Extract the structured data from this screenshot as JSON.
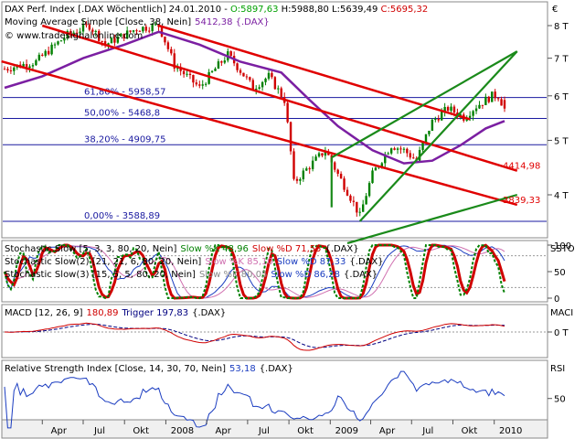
{
  "header": {
    "main_prefix": "DAX Perf. Index [.DAX  Wöchentlich] 24.01.2010 - ",
    "ohlc": [
      {
        "label": "O:5897,63",
        "color": "#00a000"
      },
      {
        "label": " H:5988,80",
        "color": "#000000"
      },
      {
        "label": " L:5639,49",
        "color": "#000000"
      },
      {
        "label": " C:5695,32",
        "color": "#d00000"
      }
    ],
    "ma_label": "Moving Average Simple [Close, 38, Nein]",
    "ma_value": "5412,38 {.DAX}",
    "website": "© www.tradesignalonline.com",
    "euro_symbol": "€"
  },
  "colors": {
    "up": "#008000",
    "down": "#d00000",
    "ma": "#7b1fa2",
    "channel": "#e00000",
    "support": "#1a8a1a",
    "fib": "#1a1aa0",
    "stoch_k": "#008000",
    "stoch_d": "#d00000",
    "macd": "#d00000",
    "trigger": "#000080",
    "rsi": "#1a3cc0"
  },
  "fibonacci": [
    {
      "label": "61,80% - 5958,57",
      "value": 5958.57
    },
    {
      "label": "50,00% - 5468,8",
      "value": 5468.8
    },
    {
      "label": "38,20% - 4909,75",
      "value": 4909.75
    },
    {
      "label": "0,00% - 3588,89",
      "value": 3588.89
    }
  ],
  "annotations": [
    {
      "label": "4414,98",
      "value": 4414.98
    },
    {
      "label": "3839,33",
      "value": 3839.33
    }
  ],
  "axes": {
    "price_ticks": [
      {
        "label": "8 T",
        "value": 8000
      },
      {
        "label": "7 T",
        "value": 7000
      },
      {
        "label": "6 T",
        "value": 6000
      },
      {
        "label": "5 T",
        "value": 5000
      },
      {
        "label": "4 T",
        "value": 4000
      }
    ],
    "x_labels": [
      "Apr",
      "Jul",
      "Okt",
      "2008",
      "Apr",
      "Jul",
      "Okt",
      "2009",
      "Apr",
      "Jul",
      "Okt",
      "2010"
    ],
    "stoch_title": "SSTO",
    "stoch_ticks": [
      {
        "label": "100",
        "value": 100
      },
      {
        "label": "50",
        "value": 50
      },
      {
        "label": "0",
        "value": 0
      }
    ],
    "macd_title": "MACI",
    "macd_ticks": [
      {
        "label": "0 T",
        "value": 0
      }
    ],
    "rsi_title": "RSI",
    "rsi_ticks": [
      {
        "label": "50",
        "value": 50
      }
    ]
  },
  "stochastic": [
    {
      "prefix": "Stochastic Slow [5, 3, 3, 80, 20, Nein]",
      "k": "Slow %K 48,96",
      "d": "Slow %D 71,55",
      "suffix": "{.DAX}"
    },
    {
      "prefix": "Stochastic Slow(2) [21, 21, 6, 80, 20, Nein]",
      "k": "Slow %K 85,10",
      "d": "Slow %D 87,33",
      "suffix": "{.DAX}"
    },
    {
      "prefix": "Stochastic Slow(3) [15, 5, 5, 80, 20, Nein]",
      "k": "Slow %K 80,05",
      "d": "Slow %D 86,28",
      "suffix": "{.DAX}"
    }
  ],
  "macd": {
    "prefix": "MACD [12, 26, 9]",
    "value": "180,89",
    "trigger": "Trigger 197,83",
    "suffix": "{.DAX}"
  },
  "rsi": {
    "prefix": "Relative Strength Index [Close, 14, 30, 70, Nein]",
    "value": "53,18",
    "suffix": "{.DAX}"
  },
  "chart_data": {
    "type": "candlestick",
    "title": "DAX Perf. Index [.DAX  Wöchentlich] 24.01.2010",
    "x_start": "2007-01-07",
    "x_end": "2010-01-24",
    "x_ticks": [
      {
        "label": "Apr",
        "date": "2007-04-01"
      },
      {
        "label": "Jul",
        "date": "2007-07-01"
      },
      {
        "label": "Okt",
        "date": "2007-10-01"
      },
      {
        "label": "2008",
        "date": "2008-01-01"
      },
      {
        "label": "Apr",
        "date": "2008-04-01"
      },
      {
        "label": "Jul",
        "date": "2008-07-01"
      },
      {
        "label": "Okt",
        "date": "2008-10-01"
      },
      {
        "label": "2009",
        "date": "2009-01-01"
      },
      {
        "label": "Apr",
        "date": "2009-04-01"
      },
      {
        "label": "Jul",
        "date": "2009-07-01"
      },
      {
        "label": "Okt",
        "date": "2009-10-01"
      },
      {
        "label": "2010",
        "date": "2010-01-01"
      }
    ],
    "price_scale": "log",
    "price_range": [
      3350,
      8300
    ],
    "price_key": [
      {
        "date": "2007-01-07",
        "close": 6700
      },
      {
        "date": "2007-03-18",
        "close": 6900
      },
      {
        "date": "2007-05-27",
        "close": 7700
      },
      {
        "date": "2007-07-15",
        "close": 8000
      },
      {
        "date": "2007-08-19",
        "close": 7400
      },
      {
        "date": "2007-10-28",
        "close": 7900
      },
      {
        "date": "2007-12-16",
        "close": 8000
      },
      {
        "date": "2008-01-20",
        "close": 6800
      },
      {
        "date": "2008-03-16",
        "close": 6200
      },
      {
        "date": "2008-05-18",
        "close": 7100
      },
      {
        "date": "2008-07-13",
        "close": 6200
      },
      {
        "date": "2008-08-17",
        "close": 6500
      },
      {
        "date": "2008-09-21",
        "close": 5900
      },
      {
        "date": "2008-10-12",
        "close": 4200
      },
      {
        "date": "2008-11-16",
        "close": 4500
      },
      {
        "date": "2008-12-21",
        "close": 4800
      },
      {
        "date": "2009-01-18",
        "close": 4350
      },
      {
        "date": "2009-03-08",
        "close": 3666
      },
      {
        "date": "2009-04-05",
        "close": 4350
      },
      {
        "date": "2009-05-17",
        "close": 4900
      },
      {
        "date": "2009-06-14",
        "close": 4800
      },
      {
        "date": "2009-07-12",
        "close": 4600
      },
      {
        "date": "2009-08-16",
        "close": 5400
      },
      {
        "date": "2009-09-20",
        "close": 5700
      },
      {
        "date": "2009-10-25",
        "close": 5500
      },
      {
        "date": "2009-11-22",
        "close": 5750
      },
      {
        "date": "2009-12-27",
        "close": 6000
      },
      {
        "date": "2010-01-10",
        "close": 6000
      },
      {
        "date": "2010-01-24",
        "close": 5695.32
      }
    ],
    "last_candle": {
      "date": "2010-01-24",
      "open": 5897.63,
      "high": 5988.8,
      "low": 5639.49,
      "close": 5695.32
    },
    "moving_average": {
      "name": "Moving Average Simple [Close, 38, Nein]",
      "last": 5412.38,
      "points": [
        {
          "date": "2007-01-07",
          "value": 6200
        },
        {
          "date": "2007-04-01",
          "value": 6500
        },
        {
          "date": "2007-07-01",
          "value": 7000
        },
        {
          "date": "2007-10-01",
          "value": 7400
        },
        {
          "date": "2007-12-16",
          "value": 7800
        },
        {
          "date": "2008-03-16",
          "value": 7400
        },
        {
          "date": "2008-06-15",
          "value": 6900
        },
        {
          "date": "2008-09-14",
          "value": 6600
        },
        {
          "date": "2008-11-16",
          "value": 5900
        },
        {
          "date": "2009-01-18",
          "value": 5300
        },
        {
          "date": "2009-04-05",
          "value": 4800
        },
        {
          "date": "2009-06-14",
          "value": 4550
        },
        {
          "date": "2009-08-16",
          "value": 4600
        },
        {
          "date": "2009-10-18",
          "value": 4900
        },
        {
          "date": "2009-12-13",
          "value": 5250
        },
        {
          "date": "2010-01-24",
          "value": 5412.38
        }
      ]
    },
    "trendlines": [
      {
        "kind": "channel",
        "from": {
          "date": "2006-12-31",
          "value": 6910
        },
        "to": {
          "date": "2010-02-21",
          "value": 3839.33
        }
      },
      {
        "kind": "channel",
        "from": {
          "date": "2007-04-01",
          "value": 8000
        },
        "to": {
          "date": "2010-02-21",
          "value": 4414.98
        }
      },
      {
        "kind": "channel",
        "from": {
          "date": "2007-12-16",
          "value": 8000
        },
        "to": {
          "date": "2009-11-08",
          "value": 5450
        }
      },
      {
        "kind": "support",
        "from": {
          "date": "2009-02-08",
          "value": 3280
        },
        "to": {
          "date": "2010-02-21",
          "value": 4000
        }
      },
      {
        "kind": "support",
        "from": {
          "date": "2009-03-08",
          "value": 3590
        },
        "to": {
          "date": "2010-02-21",
          "value": 7200
        }
      },
      {
        "kind": "support",
        "from": {
          "date": "2009-01-04",
          "value": 4660
        },
        "to": {
          "date": "2010-02-21",
          "value": 7200
        }
      },
      {
        "kind": "support",
        "from": {
          "date": "2009-01-04",
          "value": 3800
        },
        "to": {
          "date": "2009-01-04",
          "value": 4660
        }
      }
    ],
    "stochastic": {
      "range": [
        0,
        100
      ],
      "levels": [
        80,
        20
      ],
      "k_last": 48.96,
      "d_last": 71.55,
      "k2_last": 85.1,
      "d2_last": 87.33,
      "k3_last": 80.05,
      "d3_last": 86.28
    },
    "macd": {
      "last": 180.89,
      "trigger_last": 197.83
    },
    "rsi": {
      "last": 53.18,
      "levels": [
        30,
        70
      ]
    }
  }
}
